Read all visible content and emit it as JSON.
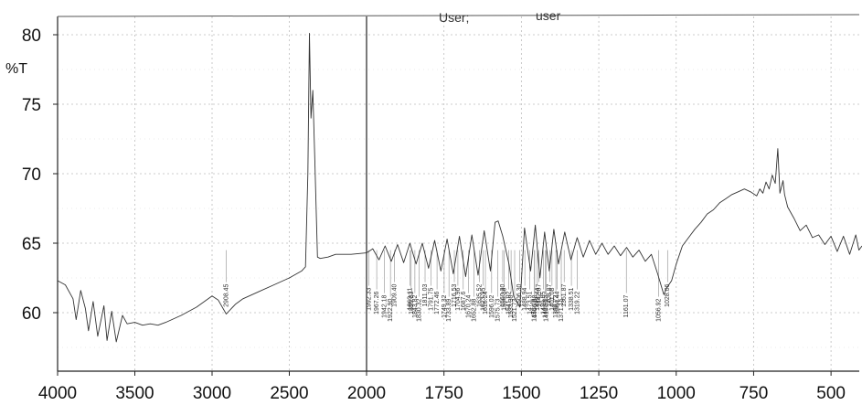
{
  "header": {
    "user_label": "User;",
    "user_value": "user"
  },
  "chart_data": {
    "type": "line",
    "title": "",
    "xlabel": "",
    "ylabel": "%T",
    "x_reversed": true,
    "xlim": [
      4000,
      400
    ],
    "ylim": [
      55,
      82
    ],
    "x_ticks": [
      "4000",
      "3500",
      "3000",
      "2500",
      "2000",
      "1750",
      "1500",
      "1250",
      "1000",
      "750",
      "500"
    ],
    "y_ticks": [
      "80",
      "75",
      "70",
      "65",
      "60"
    ],
    "x_tick_values": [
      4000,
      3500,
      3000,
      2500,
      2000,
      1750,
      1500,
      1250,
      1000,
      750,
      500
    ],
    "y_tick_values": [
      80,
      75,
      70,
      65,
      60
    ],
    "grid": true,
    "series": [
      {
        "values": [
          [
            4000,
            62.3
          ],
          [
            3950,
            62.0
          ],
          [
            3900,
            61.0
          ],
          [
            3880,
            59.5
          ],
          [
            3850,
            61.6
          ],
          [
            3820,
            60.3
          ],
          [
            3800,
            58.7
          ],
          [
            3770,
            60.8
          ],
          [
            3740,
            58.3
          ],
          [
            3700,
            60.5
          ],
          [
            3680,
            58.0
          ],
          [
            3650,
            60.1
          ],
          [
            3620,
            57.9
          ],
          [
            3580,
            59.8
          ],
          [
            3550,
            59.2
          ],
          [
            3500,
            59.3
          ],
          [
            3450,
            59.1
          ],
          [
            3400,
            59.2
          ],
          [
            3350,
            59.1
          ],
          [
            3300,
            59.3
          ],
          [
            3200,
            59.8
          ],
          [
            3100,
            60.4
          ],
          [
            3000,
            61.2
          ],
          [
            2960,
            60.9
          ],
          [
            2908,
            59.9
          ],
          [
            2850,
            60.6
          ],
          [
            2800,
            61.0
          ],
          [
            2700,
            61.5
          ],
          [
            2600,
            62.0
          ],
          [
            2500,
            62.5
          ],
          [
            2420,
            63.0
          ],
          [
            2395,
            63.3
          ],
          [
            2380,
            70.0
          ],
          [
            2370,
            80.1
          ],
          [
            2360,
            74.0
          ],
          [
            2348,
            76.0
          ],
          [
            2335,
            71.0
          ],
          [
            2318,
            64.0
          ],
          [
            2300,
            63.9
          ],
          [
            2250,
            64.0
          ],
          [
            2200,
            64.2
          ],
          [
            2100,
            64.2
          ],
          [
            2000,
            64.3
          ],
          [
            1980,
            64.6
          ],
          [
            1960,
            63.8
          ],
          [
            1940,
            64.8
          ],
          [
            1920,
            63.7
          ],
          [
            1900,
            64.9
          ],
          [
            1880,
            63.6
          ],
          [
            1860,
            65.0
          ],
          [
            1840,
            63.5
          ],
          [
            1820,
            65.0
          ],
          [
            1800,
            63.2
          ],
          [
            1780,
            65.2
          ],
          [
            1760,
            63.0
          ],
          [
            1740,
            65.3
          ],
          [
            1720,
            62.8
          ],
          [
            1700,
            65.5
          ],
          [
            1680,
            62.6
          ],
          [
            1660,
            65.6
          ],
          [
            1640,
            62.7
          ],
          [
            1620,
            65.9
          ],
          [
            1600,
            63.0
          ],
          [
            1585,
            66.5
          ],
          [
            1575,
            66.6
          ],
          [
            1560,
            65.5
          ],
          [
            1540,
            63.5
          ],
          [
            1525,
            61.2
          ],
          [
            1505,
            60.4
          ],
          [
            1490,
            66.1
          ],
          [
            1470,
            63.0
          ],
          [
            1455,
            66.3
          ],
          [
            1440,
            62.5
          ],
          [
            1425,
            65.8
          ],
          [
            1410,
            63.0
          ],
          [
            1395,
            66.0
          ],
          [
            1380,
            63.5
          ],
          [
            1360,
            65.8
          ],
          [
            1340,
            63.8
          ],
          [
            1320,
            65.4
          ],
          [
            1300,
            64.0
          ],
          [
            1280,
            65.2
          ],
          [
            1260,
            64.2
          ],
          [
            1240,
            65.0
          ],
          [
            1220,
            64.2
          ],
          [
            1200,
            64.8
          ],
          [
            1180,
            64.1
          ],
          [
            1160,
            64.7
          ],
          [
            1140,
            64.0
          ],
          [
            1120,
            64.5
          ],
          [
            1100,
            63.7
          ],
          [
            1080,
            64.2
          ],
          [
            1060,
            62.8
          ],
          [
            1040,
            61.3
          ],
          [
            1030,
            61.8
          ],
          [
            1015,
            62.3
          ],
          [
            1000,
            63.5
          ],
          [
            980,
            64.8
          ],
          [
            960,
            65.4
          ],
          [
            940,
            66.0
          ],
          [
            920,
            66.5
          ],
          [
            900,
            67.1
          ],
          [
            880,
            67.4
          ],
          [
            860,
            67.9
          ],
          [
            840,
            68.2
          ],
          [
            820,
            68.5
          ],
          [
            800,
            68.7
          ],
          [
            780,
            68.9
          ],
          [
            760,
            68.7
          ],
          [
            740,
            68.4
          ],
          [
            730,
            68.9
          ],
          [
            720,
            68.6
          ],
          [
            710,
            69.4
          ],
          [
            700,
            68.9
          ],
          [
            690,
            69.9
          ],
          [
            680,
            69.3
          ],
          [
            672,
            71.8
          ],
          [
            665,
            68.6
          ],
          [
            655,
            69.5
          ],
          [
            650,
            68.5
          ],
          [
            640,
            67.6
          ],
          [
            620,
            66.8
          ],
          [
            600,
            65.9
          ],
          [
            580,
            66.3
          ],
          [
            560,
            65.4
          ],
          [
            540,
            65.6
          ],
          [
            520,
            64.9
          ],
          [
            500,
            65.5
          ],
          [
            480,
            64.4
          ],
          [
            460,
            65.5
          ],
          [
            440,
            64.2
          ],
          [
            420,
            65.6
          ],
          [
            410,
            64.5
          ],
          [
            400,
            64.8
          ]
        ]
      }
    ],
    "peak_labels": [
      {
        "x": 2908.45,
        "label": "2908.45"
      },
      {
        "x": 1992.33,
        "label": "1992.33"
      },
      {
        "x": 1967.26,
        "label": "1967.26"
      },
      {
        "x": 1942.18,
        "label": "1942.18"
      },
      {
        "x": 1922.9,
        "label": "1922.90"
      },
      {
        "x": 1909.4,
        "label": "1909.40"
      },
      {
        "x": 1860.11,
        "label": "1860.11"
      },
      {
        "x": 1855.83,
        "label": "1855.83"
      },
      {
        "x": 1843.82,
        "label": "1843.82"
      },
      {
        "x": 1830.32,
        "label": "1830.32"
      },
      {
        "x": 1811.03,
        "label": "1811.03"
      },
      {
        "x": 1791.75,
        "label": "1791.75"
      },
      {
        "x": 1772.46,
        "label": "1772.46"
      },
      {
        "x": 1749.32,
        "label": "1749.32"
      },
      {
        "x": 1733.89,
        "label": "1733.89"
      },
      {
        "x": 1716.53,
        "label": "1716.53"
      },
      {
        "x": 1704.96,
        "label": "1704.96"
      },
      {
        "x": 1687.6,
        "label": "1687.6"
      },
      {
        "x": 1670.24,
        "label": "1670.24"
      },
      {
        "x": 1652.88,
        "label": "1652.88"
      },
      {
        "x": 1635.52,
        "label": "1635.52"
      },
      {
        "x": 1623.95,
        "label": "1623.95"
      },
      {
        "x": 1616.24,
        "label": "1616.24"
      },
      {
        "x": 1596.02,
        "label": "1596.02"
      },
      {
        "x": 1575.73,
        "label": "1575.73"
      },
      {
        "x": 1560.3,
        "label": "1560.30"
      },
      {
        "x": 1556.38,
        "label": "1556.38"
      },
      {
        "x": 1541.02,
        "label": "1541.02"
      },
      {
        "x": 1533.3,
        "label": "1533.30"
      },
      {
        "x": 1521.73,
        "label": "1521.73"
      },
      {
        "x": 1506.3,
        "label": "1506.30"
      },
      {
        "x": 1488.94,
        "label": "1488.94"
      },
      {
        "x": 1473.51,
        "label": "1473.51"
      },
      {
        "x": 1456.98,
        "label": "1456.98"
      },
      {
        "x": 1458.08,
        "label": "1458.08"
      },
      {
        "x": 1442.87,
        "label": "1442.87"
      },
      {
        "x": 1448.44,
        "label": "1448.44"
      },
      {
        "x": 1429.05,
        "label": "1429.05"
      },
      {
        "x": 1423.05,
        "label": "1423.05"
      },
      {
        "x": 1419.51,
        "label": "1419.51"
      },
      {
        "x": 1408.87,
        "label": "1408.87"
      },
      {
        "x": 1401.08,
        "label": "1401.08"
      },
      {
        "x": 1384.44,
        "label": "1384.44"
      },
      {
        "x": 1388.72,
        "label": "1388.72"
      },
      {
        "x": 1371.15,
        "label": "1371.15"
      },
      {
        "x": 1361.87,
        "label": "1361.87"
      },
      {
        "x": 1338.51,
        "label": "1338.51"
      },
      {
        "x": 1319.22,
        "label": "1319.22"
      },
      {
        "x": 1161.07,
        "label": "1161.07"
      },
      {
        "x": 1056.92,
        "label": "1056.92"
      },
      {
        "x": 1028.06,
        "label": "1028.06"
      }
    ]
  }
}
